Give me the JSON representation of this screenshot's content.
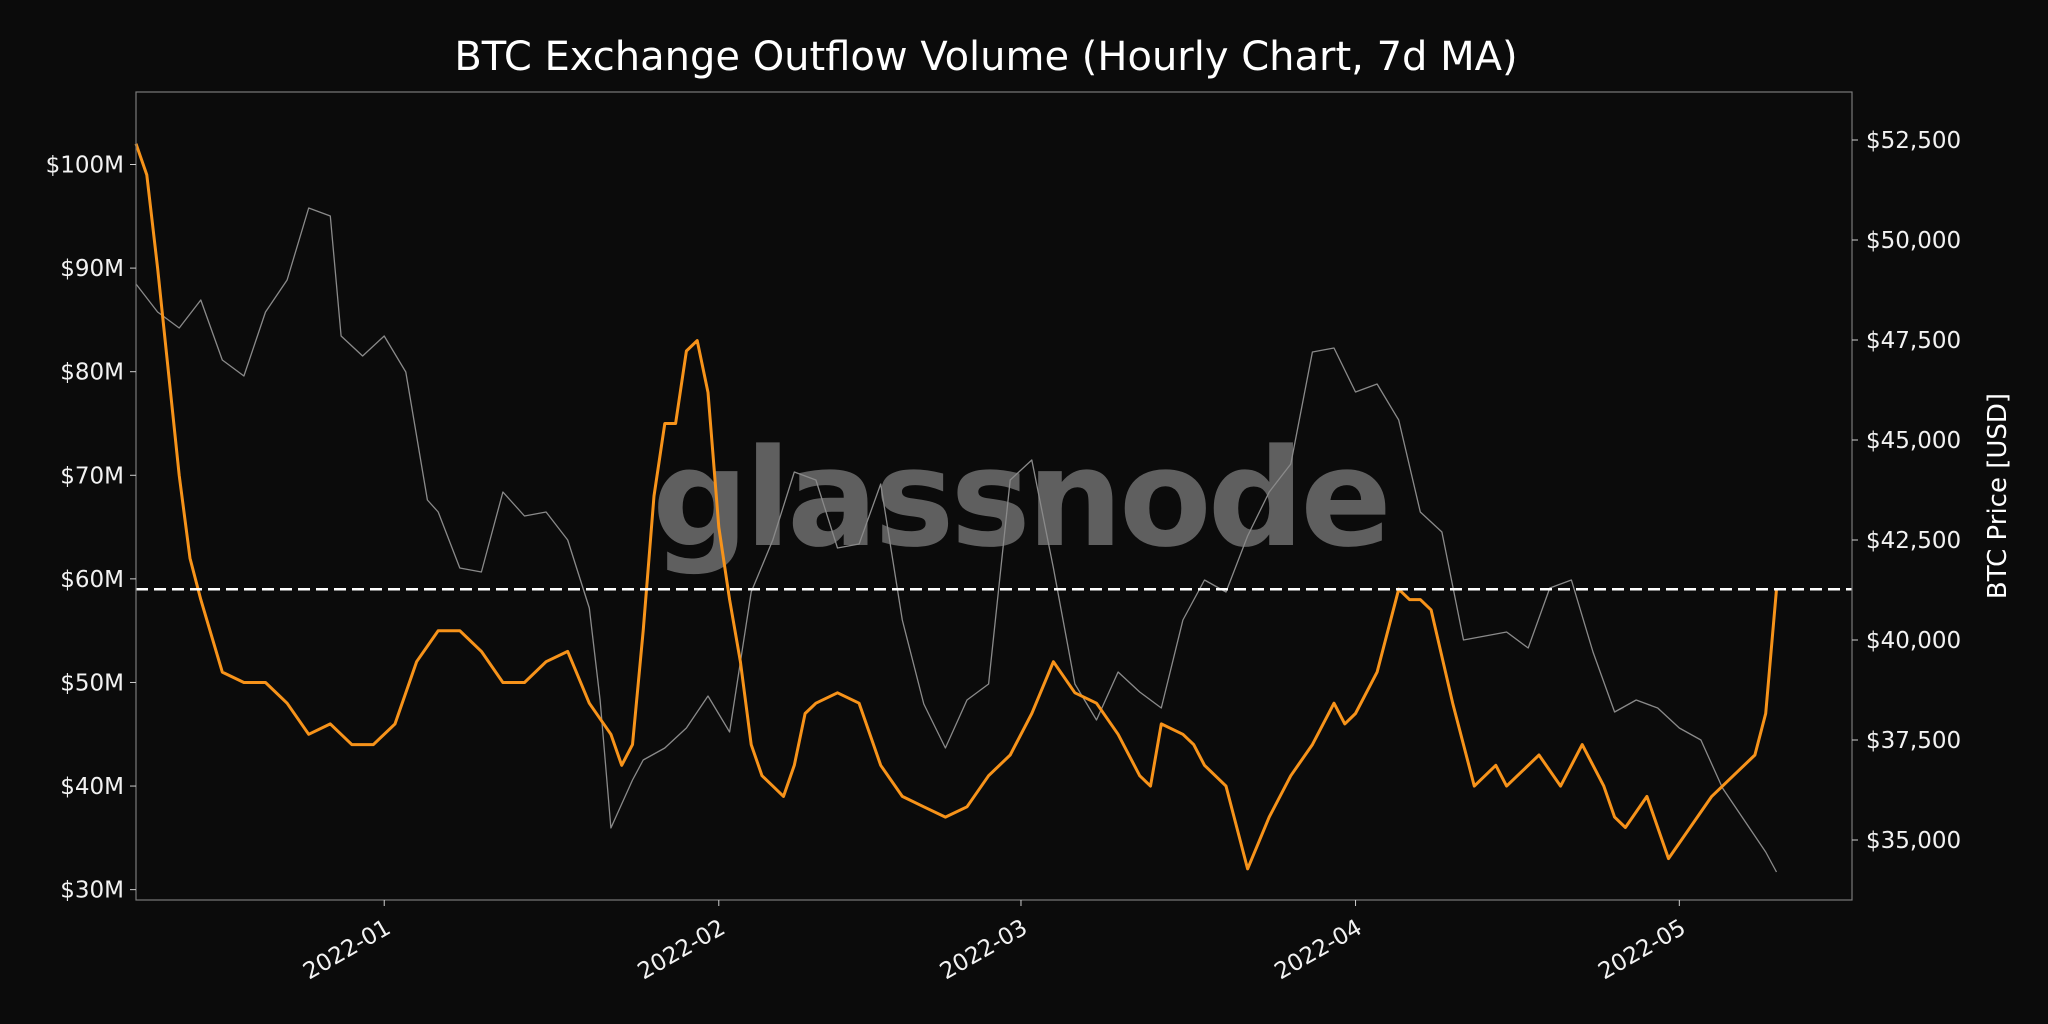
{
  "chart_data": {
    "type": "line",
    "title": "BTC Exchange Outflow Volume (Hourly Chart, 7d MA)",
    "watermark": "glassnode",
    "xlabel": "",
    "ylabel": "",
    "y2label": "BTC Price [USD]",
    "x_ticks": [
      "2022-01",
      "2022-02",
      "2022-03",
      "2022-04",
      "2022-05"
    ],
    "y_ticks": [
      "$30M",
      "$40M",
      "$50M",
      "$60M",
      "$70M",
      "$80M",
      "$90M",
      "$100M"
    ],
    "y2_ticks": [
      "$35,000",
      "$37,500",
      "$40,000",
      "$42,500",
      "$45,000",
      "$47,500",
      "$50,000",
      "$52,500"
    ],
    "xlim": [
      "2021-12-09",
      "2022-05-17"
    ],
    "ylim": [
      29000000,
      107000000
    ],
    "y2lim": [
      33500,
      53700
    ],
    "grid": false,
    "reference_line": {
      "value": 59000000,
      "style": "dashed",
      "color": "#ffffff"
    },
    "colors": {
      "outflow": "#f7931a",
      "price": "#8a8a8a",
      "background": "#0b0b0b",
      "frame": "#7a7a7a"
    },
    "series": [
      {
        "axis": "left",
        "x": [
          "2021-12-09",
          "2021-12-10",
          "2021-12-11",
          "2021-12-12",
          "2021-12-13",
          "2021-12-14",
          "2021-12-15",
          "2021-12-17",
          "2021-12-19",
          "2021-12-21",
          "2021-12-23",
          "2021-12-25",
          "2021-12-27",
          "2021-12-29",
          "2021-12-31",
          "2022-01-02",
          "2022-01-04",
          "2022-01-06",
          "2022-01-08",
          "2022-01-10",
          "2022-01-12",
          "2022-01-14",
          "2022-01-16",
          "2022-01-18",
          "2022-01-20",
          "2022-01-22",
          "2022-01-23",
          "2022-01-24",
          "2022-01-25",
          "2022-01-26",
          "2022-01-27",
          "2022-01-28",
          "2022-01-29",
          "2022-01-30",
          "2022-01-31",
          "2022-02-01",
          "2022-02-02",
          "2022-02-03",
          "2022-02-04",
          "2022-02-05",
          "2022-02-06",
          "2022-02-07",
          "2022-02-08",
          "2022-02-09",
          "2022-02-10",
          "2022-02-12",
          "2022-02-14",
          "2022-02-16",
          "2022-02-18",
          "2022-02-20",
          "2022-02-22",
          "2022-02-24",
          "2022-02-26",
          "2022-02-28",
          "2022-03-02",
          "2022-03-04",
          "2022-03-06",
          "2022-03-08",
          "2022-03-10",
          "2022-03-12",
          "2022-03-13",
          "2022-03-14",
          "2022-03-16",
          "2022-03-17",
          "2022-03-18",
          "2022-03-20",
          "2022-03-22",
          "2022-03-24",
          "2022-03-26",
          "2022-03-28",
          "2022-03-30",
          "2022-03-31",
          "2022-04-01",
          "2022-04-03",
          "2022-04-05",
          "2022-04-06",
          "2022-04-07",
          "2022-04-08",
          "2022-04-10",
          "2022-04-12",
          "2022-04-14",
          "2022-04-15",
          "2022-04-16",
          "2022-04-18",
          "2022-04-20",
          "2022-04-22",
          "2022-04-24",
          "2022-04-25",
          "2022-04-26",
          "2022-04-28",
          "2022-04-30",
          "2022-05-02",
          "2022-05-04",
          "2022-05-06",
          "2022-05-08",
          "2022-05-09",
          "2022-05-10"
        ],
        "values": [
          102000000,
          99000000,
          90000000,
          80000000,
          70000000,
          62000000,
          58000000,
          51000000,
          50000000,
          50000000,
          48000000,
          45000000,
          46000000,
          44000000,
          44000000,
          46000000,
          52000000,
          55000000,
          55000000,
          53000000,
          50000000,
          50000000,
          52000000,
          53000000,
          48000000,
          45000000,
          42000000,
          44000000,
          55000000,
          68000000,
          75000000,
          75000000,
          82000000,
          83000000,
          78000000,
          65000000,
          58000000,
          52000000,
          44000000,
          41000000,
          40000000,
          39000000,
          42000000,
          47000000,
          48000000,
          49000000,
          48000000,
          42000000,
          39000000,
          38000000,
          37000000,
          38000000,
          41000000,
          43000000,
          47000000,
          52000000,
          49000000,
          48000000,
          45000000,
          41000000,
          40000000,
          46000000,
          45000000,
          44000000,
          42000000,
          40000000,
          32000000,
          37000000,
          41000000,
          44000000,
          48000000,
          46000000,
          47000000,
          51000000,
          59000000,
          58000000,
          58000000,
          57000000,
          48000000,
          40000000,
          42000000,
          40000000,
          41000000,
          43000000,
          40000000,
          44000000,
          40000000,
          37000000,
          36000000,
          39000000,
          33000000,
          36000000,
          39000000,
          41000000,
          43000000,
          47000000,
          59000000
        ]
      },
      {
        "axis": "right",
        "x": [
          "2021-12-09",
          "2021-12-11",
          "2021-12-13",
          "2021-12-15",
          "2021-12-17",
          "2021-12-19",
          "2021-12-21",
          "2021-12-23",
          "2021-12-25",
          "2021-12-27",
          "2021-12-28",
          "2021-12-30",
          "2022-01-01",
          "2022-01-03",
          "2022-01-05",
          "2022-01-06",
          "2022-01-08",
          "2022-01-10",
          "2022-01-12",
          "2022-01-14",
          "2022-01-16",
          "2022-01-18",
          "2022-01-20",
          "2022-01-21",
          "2022-01-22",
          "2022-01-24",
          "2022-01-25",
          "2022-01-27",
          "2022-01-29",
          "2022-01-31",
          "2022-02-02",
          "2022-02-04",
          "2022-02-06",
          "2022-02-08",
          "2022-02-10",
          "2022-02-12",
          "2022-02-14",
          "2022-02-16",
          "2022-02-18",
          "2022-02-20",
          "2022-02-22",
          "2022-02-24",
          "2022-02-26",
          "2022-02-28",
          "2022-03-02",
          "2022-03-04",
          "2022-03-06",
          "2022-03-08",
          "2022-03-10",
          "2022-03-12",
          "2022-03-14",
          "2022-03-16",
          "2022-03-18",
          "2022-03-20",
          "2022-03-22",
          "2022-03-24",
          "2022-03-26",
          "2022-03-28",
          "2022-03-30",
          "2022-04-01",
          "2022-04-03",
          "2022-04-05",
          "2022-04-07",
          "2022-04-09",
          "2022-04-11",
          "2022-04-13",
          "2022-04-15",
          "2022-04-17",
          "2022-04-19",
          "2022-04-21",
          "2022-04-23",
          "2022-04-25",
          "2022-04-27",
          "2022-04-29",
          "2022-05-01",
          "2022-05-03",
          "2022-05-05",
          "2022-05-07",
          "2022-05-09",
          "2022-05-10"
        ],
        "values": [
          48900,
          48200,
          47800,
          48500,
          47000,
          46600,
          48200,
          49000,
          50800,
          50600,
          47600,
          47100,
          47600,
          46700,
          43500,
          43200,
          41800,
          41700,
          43700,
          43100,
          43200,
          42500,
          40800,
          38500,
          35300,
          36500,
          37000,
          37300,
          37800,
          38600,
          37700,
          41200,
          42500,
          44200,
          44000,
          42300,
          42400,
          43900,
          40500,
          38400,
          37300,
          38500,
          38900,
          44000,
          44500,
          41800,
          38900,
          38000,
          39200,
          38700,
          38300,
          40500,
          41500,
          41200,
          42600,
          43700,
          44400,
          47200,
          47300,
          46200,
          46400,
          45500,
          43200,
          42700,
          40000,
          40100,
          40200,
          39800,
          41300,
          41500,
          39700,
          38200,
          38500,
          38300,
          37800,
          37500,
          36300,
          35500,
          34700,
          34200
        ]
      }
    ]
  }
}
